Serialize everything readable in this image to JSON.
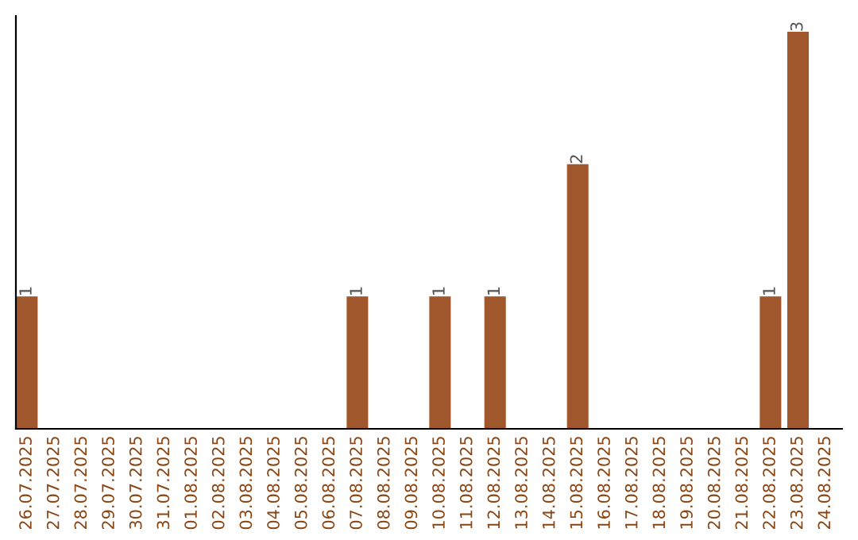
{
  "chart_data": {
    "type": "bar",
    "categories": [
      "26.07.2025",
      "27.07.2025",
      "28.07.2025",
      "29.07.2025",
      "30.07.2025",
      "31.07.2025",
      "01.08.2025",
      "02.08.2025",
      "03.08.2025",
      "04.08.2025",
      "05.08.2025",
      "06.08.2025",
      "07.08.2025",
      "08.08.2025",
      "09.08.2025",
      "10.08.2025",
      "11.08.2025",
      "12.08.2025",
      "13.08.2025",
      "14.08.2025",
      "15.08.2025",
      "16.08.2025",
      "17.08.2025",
      "18.08.2025",
      "19.08.2025",
      "20.08.2025",
      "21.08.2025",
      "22.08.2025",
      "23.08.2025",
      "24.08.2025"
    ],
    "values": [
      1,
      0,
      0,
      0,
      0,
      0,
      0,
      0,
      0,
      0,
      0,
      0,
      1,
      0,
      0,
      1,
      0,
      1,
      0,
      0,
      2,
      0,
      0,
      0,
      0,
      0,
      0,
      1,
      3,
      0
    ],
    "color": "#a0572b",
    "value_labels": [
      "1",
      null,
      null,
      null,
      null,
      null,
      null,
      null,
      null,
      null,
      null,
      null,
      "1",
      null,
      null,
      "1",
      null,
      "1",
      null,
      null,
      "2",
      null,
      null,
      null,
      null,
      null,
      null,
      "1",
      "3",
      null
    ],
    "grid": false,
    "legend": false,
    "tick_labels": "x"
  }
}
